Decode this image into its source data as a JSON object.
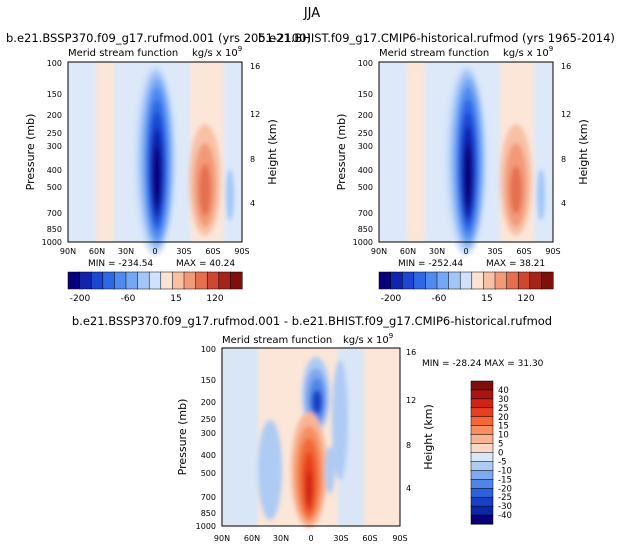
{
  "figure": {
    "season_title": "JJA",
    "panels": [
      {
        "id": "future",
        "title": "b.e21.BSSP370.f09_g17.rufmod.001 (yrs 2051-2100)",
        "subtitle_left": "Merid stream function",
        "units": "kg/s x 10",
        "units_exp": "9",
        "min_label": "MIN = -234.54",
        "max_label": "MAX = 40.24"
      },
      {
        "id": "historical",
        "title": "b.e21.BHIST.f09_g17.CMIP6-historical.rufmod (yrs 1965-2014)",
        "subtitle_left": "Merid stream function",
        "units": "kg/s x 10",
        "units_exp": "9",
        "min_label": "MIN = -252.44",
        "max_label": "MAX = 38.21"
      },
      {
        "id": "difference",
        "title": "b.e21.BSSP370.f09_g17.rufmod.001 - b.e21.BHIST.f09_g17.CMIP6-historical.rufmod",
        "subtitle_left": "Merid stream function",
        "units": "kg/s x 10",
        "units_exp": "9",
        "minmax_label": "MIN = -28.24   MAX = 31.30"
      }
    ]
  },
  "chart_data": [
    {
      "type": "heatmap",
      "panel": "future",
      "xlabel": "",
      "ylabel": "Pressure (mb)",
      "y2label": "Height (km)",
      "x_ticks": [
        "90N",
        "60N",
        "30N",
        "0",
        "30S",
        "60S",
        "90S"
      ],
      "y_ticks": [
        "100",
        "150",
        "200",
        "250",
        "300",
        "400",
        "500",
        "700",
        "850",
        "1000"
      ],
      "y2_ticks": [
        "16",
        "12",
        "8",
        "4"
      ],
      "x_range": [
        90,
        -90
      ],
      "y_range": [
        100,
        1000
      ],
      "y_scale": "log",
      "colorbar_ticks": [
        "-200",
        "-60",
        "15",
        "120"
      ],
      "colormap": [
        "#08007a",
        "#1024ad",
        "#1d46d2",
        "#2f68e6",
        "#4f8aef",
        "#75a8f4",
        "#a3c6f8",
        "#cfe1fb",
        "#fbe3d4",
        "#f8c1a6",
        "#f29a78",
        "#e56f4f",
        "#cf4631",
        "#a52419",
        "#7e0f0b"
      ],
      "min": -234.54,
      "max": 40.24
    },
    {
      "type": "heatmap",
      "panel": "historical",
      "xlabel": "",
      "ylabel": "Pressure (mb)",
      "y2label": "Height (km)",
      "x_ticks": [
        "90N",
        "60N",
        "30N",
        "0",
        "30S",
        "60S",
        "90S"
      ],
      "y_ticks": [
        "100",
        "150",
        "200",
        "250",
        "300",
        "400",
        "500",
        "700",
        "850",
        "1000"
      ],
      "y2_ticks": [
        "16",
        "12",
        "8",
        "4"
      ],
      "x_range": [
        90,
        -90
      ],
      "y_range": [
        100,
        1000
      ],
      "y_scale": "log",
      "colorbar_ticks": [
        "-200",
        "-60",
        "15",
        "120"
      ],
      "colormap": [
        "#08007a",
        "#1024ad",
        "#1d46d2",
        "#2f68e6",
        "#4f8aef",
        "#75a8f4",
        "#a3c6f8",
        "#cfe1fb",
        "#fbe3d4",
        "#f8c1a6",
        "#f29a78",
        "#e56f4f",
        "#cf4631",
        "#a52419",
        "#7e0f0b"
      ],
      "min": -252.44,
      "max": 38.21
    },
    {
      "type": "heatmap",
      "panel": "difference",
      "xlabel": "",
      "ylabel": "Pressure (mb)",
      "y2label": "Height (km)",
      "x_ticks": [
        "90N",
        "60N",
        "30N",
        "0",
        "30S",
        "60S",
        "90S"
      ],
      "y_ticks": [
        "100",
        "150",
        "200",
        "250",
        "300",
        "400",
        "500",
        "700",
        "850",
        "1000"
      ],
      "y2_ticks": [
        "16",
        "12",
        "8",
        "4"
      ],
      "x_range": [
        90,
        -90
      ],
      "y_range": [
        100,
        1000
      ],
      "y_scale": "log",
      "colorbar_ticks": [
        "40",
        "30",
        "25",
        "20",
        "15",
        "10",
        "5",
        "0",
        "-5",
        "-10",
        "-15",
        "-20",
        "-25",
        "-30",
        "-40"
      ],
      "colormap": [
        "#7e0f0b",
        "#a8140f",
        "#cf2415",
        "#e8401e",
        "#f26735",
        "#f58f5e",
        "#f8b595",
        "#fad7c6",
        "#d8e6f7",
        "#aecbf4",
        "#7ea9ef",
        "#4f85e8",
        "#2a61dd",
        "#1641c6",
        "#0a27a6",
        "#08007a"
      ],
      "min": -28.24,
      "max": 31.3
    }
  ]
}
